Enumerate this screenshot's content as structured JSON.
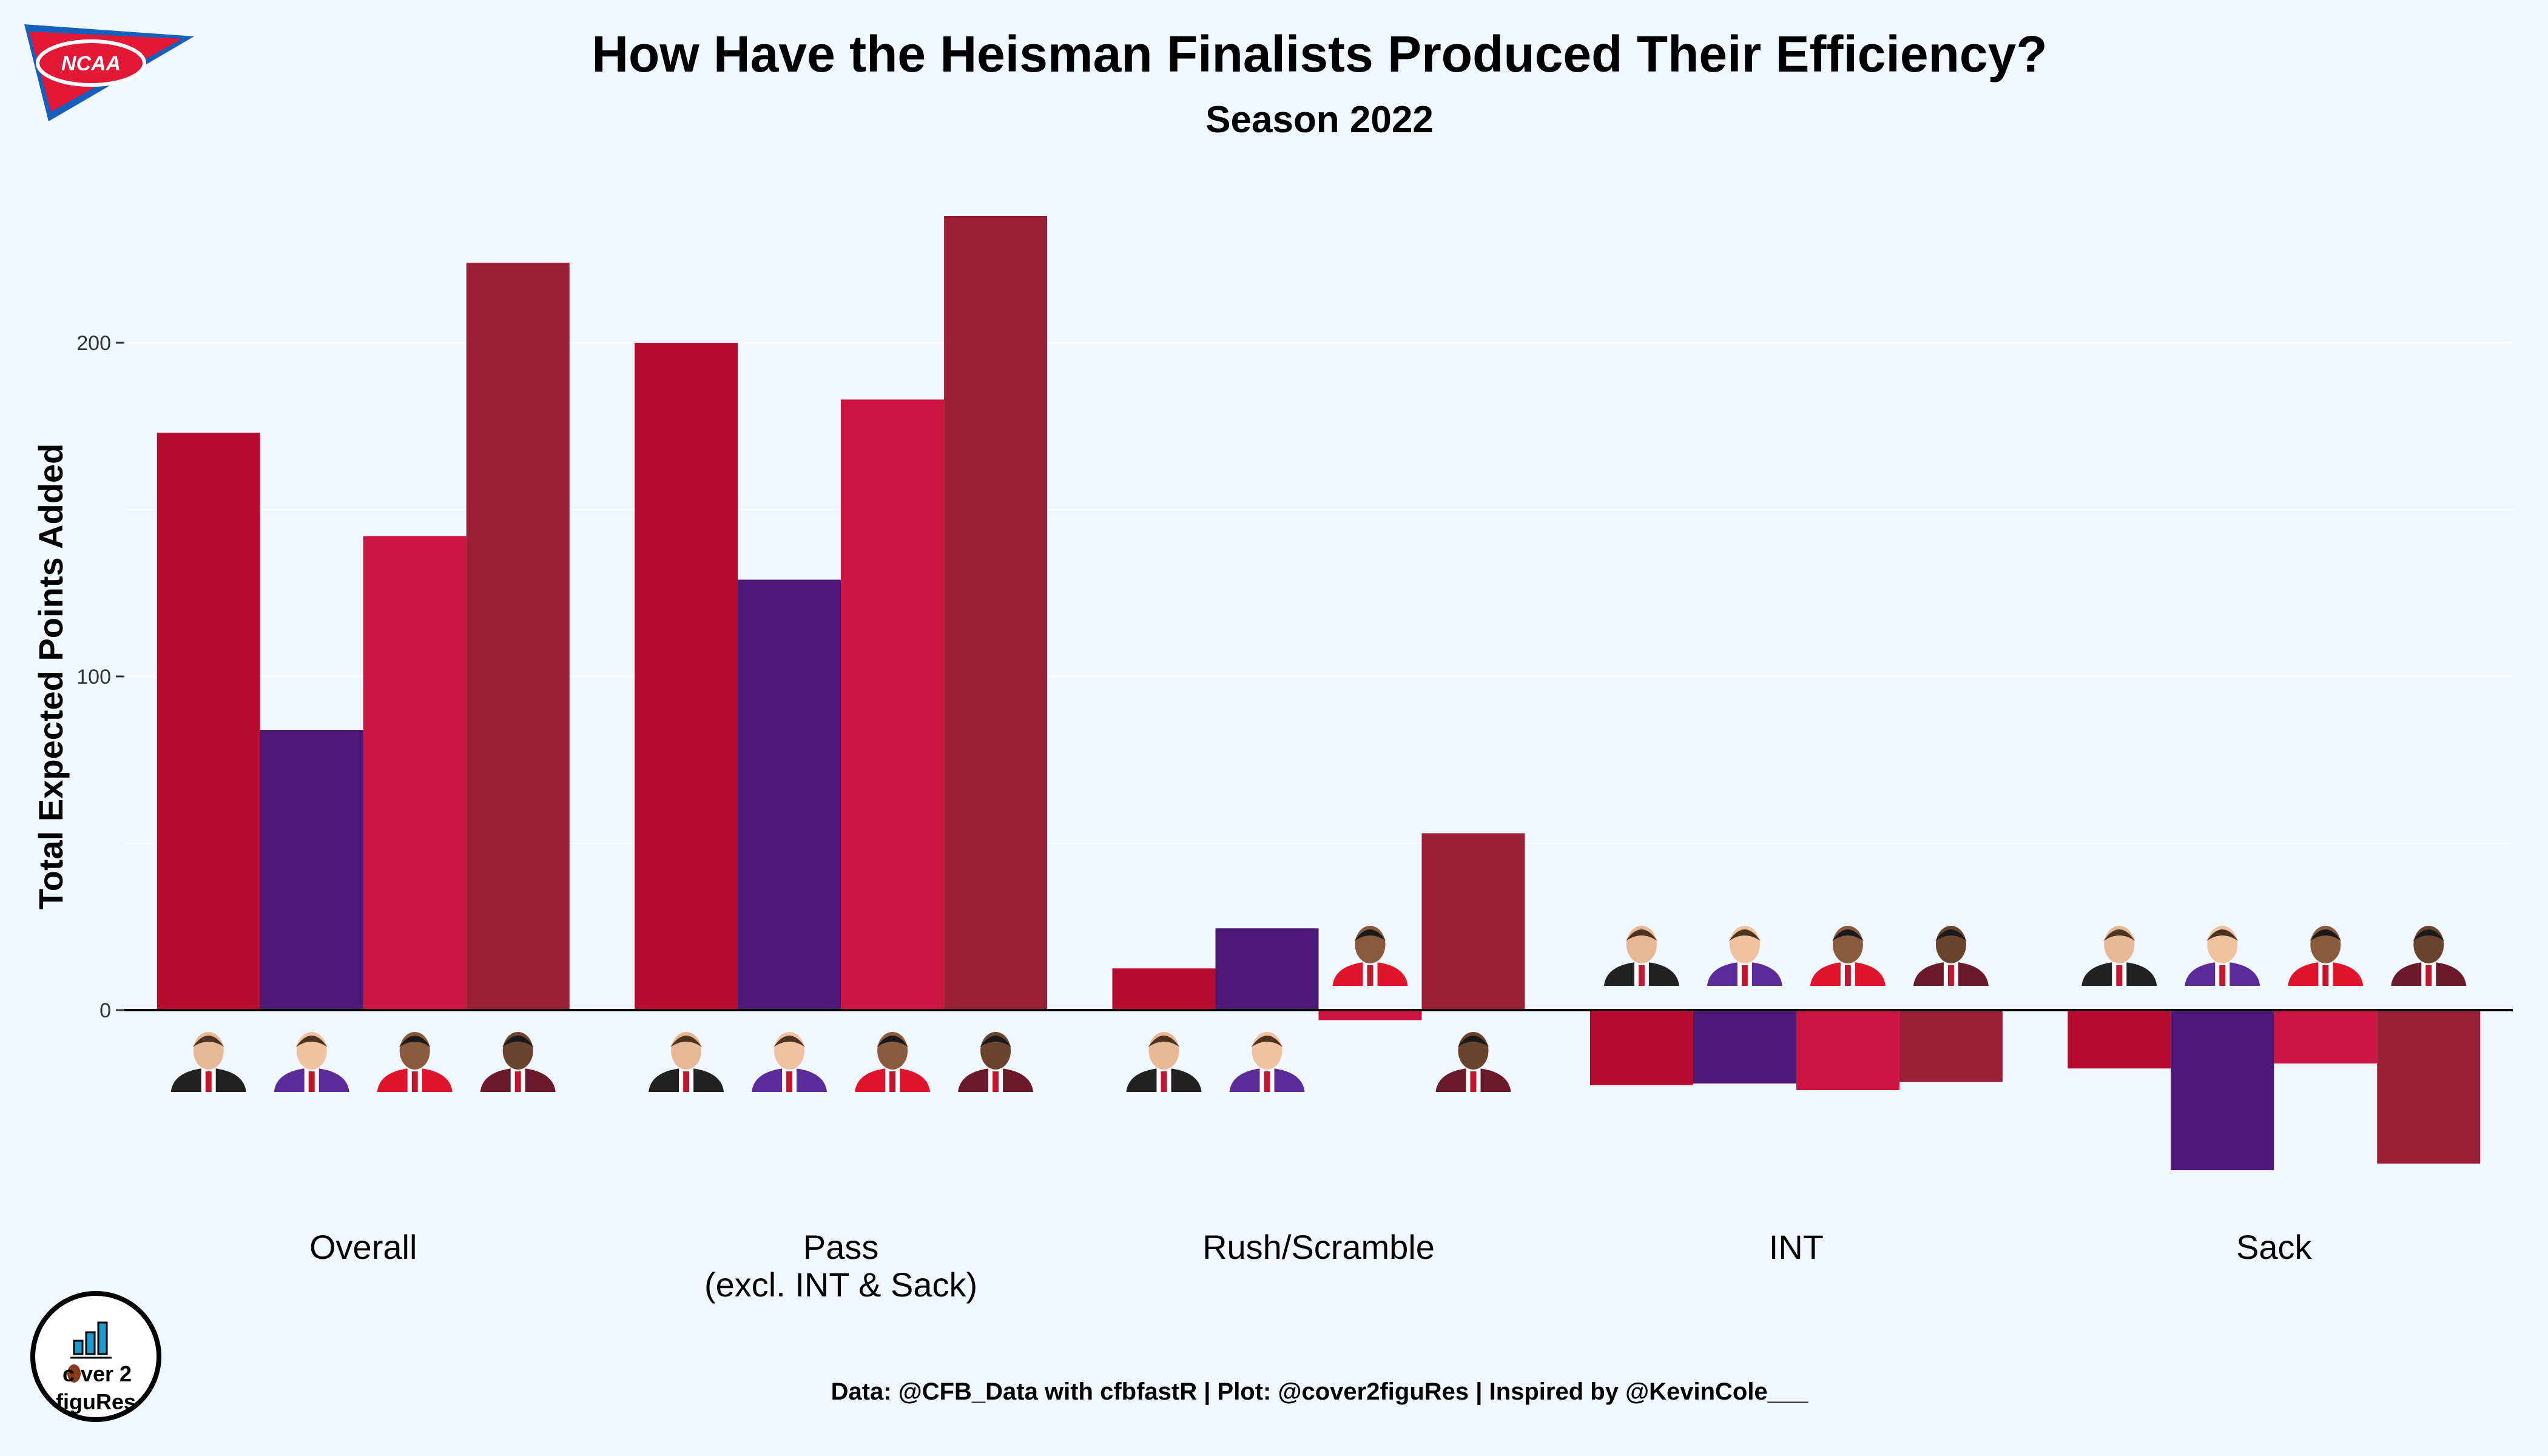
{
  "header": {
    "title": "How Have the Heisman Finalists Produced Their Efficiency?",
    "subtitle": "Season 2022",
    "logo_text": "NCAA"
  },
  "caption": "Data: @CFB_Data with cfbfastR | Plot: @cover2figuRes | Inspired by @KevinCole___",
  "brand": {
    "line1": "c ver 2",
    "line2": "figuRes"
  },
  "colors": {
    "background": "#f0f7ff",
    "player_1": "#b70c30",
    "player_2": "#4d1979",
    "player_3": "#cc1442",
    "player_4": "#9b1f36",
    "ncaa_blue": "#1560bd",
    "ncaa_red": "#e31837"
  },
  "chart_data": {
    "type": "bar",
    "title": "How Have the Heisman Finalists Produced Their Efficiency?",
    "subtitle": "Season 2022",
    "xlabel": "",
    "ylabel": "Total Expected Points Added",
    "ylim": [
      -50,
      245
    ],
    "yticks": [
      0,
      100,
      200
    ],
    "grid": true,
    "legend": "none (player headshots)",
    "categories": [
      "Overall",
      "Pass\n(excl. INT & Sack)",
      "Rush/Scramble",
      "INT",
      "Sack"
    ],
    "series": [
      {
        "color": "#b70c30",
        "values": [
          173,
          200,
          12.5,
          -22.5,
          -17.5
        ]
      },
      {
        "color": "#4d1979",
        "values": [
          84,
          129,
          24.5,
          -22,
          -48
        ]
      },
      {
        "color": "#cc1442",
        "values": [
          142,
          183,
          -3,
          -24,
          -16
        ]
      },
      {
        "color": "#9b1f36",
        "values": [
          224,
          238,
          53,
          -21.5,
          -46
        ]
      }
    ]
  }
}
